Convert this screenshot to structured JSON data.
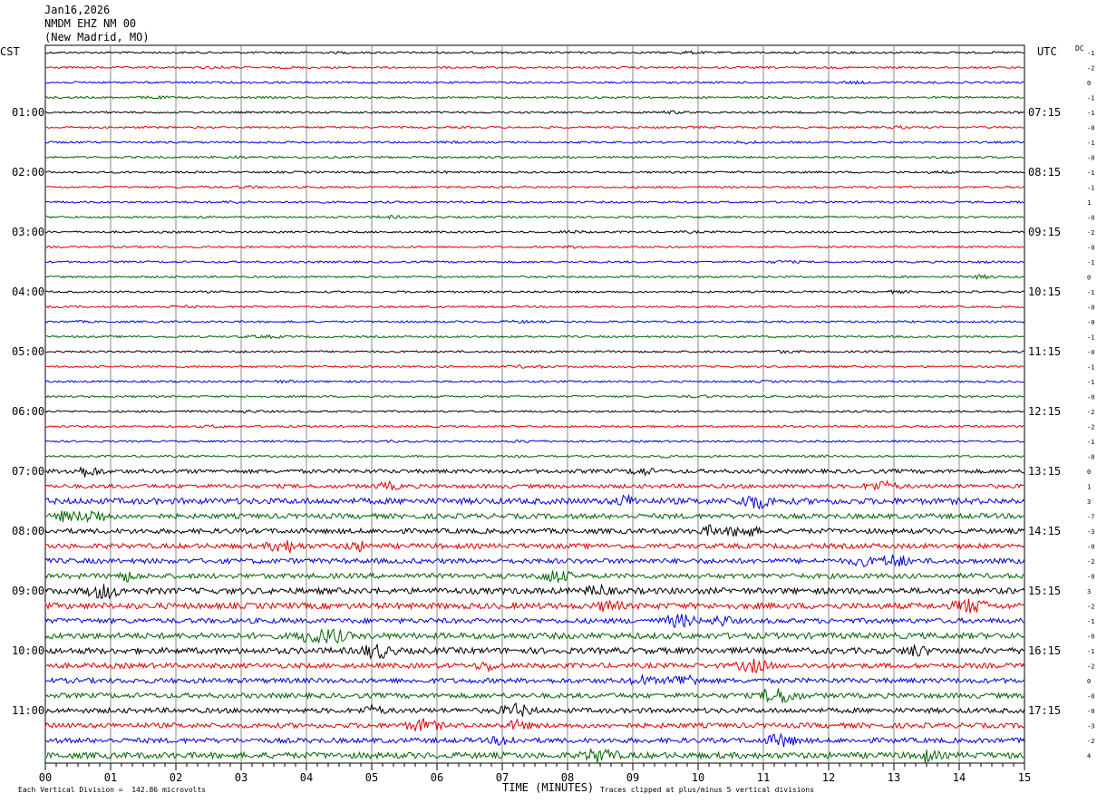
{
  "header": {
    "date": "Jan16,2026",
    "station": "NMDM EHZ NM 00",
    "location": "(New Madrid, MO)",
    "left_tz": "CST",
    "right_tz": "UTC",
    "dc_label": "DC"
  },
  "footer": {
    "scale_note": "Each Vertical Division =  142.86 microvolts",
    "xlabel": "TIME (MINUTES)",
    "clip_note": "Traces clipped at plus/minus 5 vertical divisions"
  },
  "chart_data": {
    "type": "line",
    "xlabel": "TIME (MINUTES)",
    "xlim": [
      0,
      15
    ],
    "x_ticks": [
      "00",
      "01",
      "02",
      "03",
      "04",
      "05",
      "06",
      "07",
      "08",
      "09",
      "10",
      "11",
      "12",
      "13",
      "14",
      "15"
    ],
    "trace_colors": [
      "#000000",
      "#e00000",
      "#0000e0",
      "#006600"
    ],
    "left_hour_labels": [
      "01:00",
      "02:00",
      "03:00",
      "04:00",
      "05:00",
      "06:00",
      "07:00",
      "08:00",
      "09:00",
      "10:00",
      "11:00"
    ],
    "right_hour_labels": [
      "07:15",
      "08:15",
      "09:15",
      "10:15",
      "11:15",
      "12:15",
      "13:15",
      "14:15",
      "15:15",
      "16:15",
      "17:15"
    ],
    "dc_offsets": [
      "-1",
      "-2",
      "0",
      "-1",
      "-1",
      "-0",
      "-1",
      "-0",
      "-1",
      "-1",
      "1",
      "-0",
      "-2",
      "-0",
      "-1",
      "0",
      "-1",
      "-0",
      "-0",
      "-1",
      "-0",
      "-1",
      "-1",
      "-0",
      "-2",
      "-2",
      "-1",
      "-0",
      "0",
      "1",
      "3",
      "-7",
      "-3",
      "-0",
      "-2",
      "-0",
      "3",
      "-2",
      "-1",
      "-0",
      "-1",
      "-2",
      "0",
      "-0",
      "-0",
      "-3",
      "-2",
      "4"
    ],
    "trace_amplitude": [
      1,
      1,
      1,
      1,
      1,
      1,
      1,
      1,
      1,
      1,
      1,
      1,
      1,
      1,
      1,
      1,
      1,
      1,
      1,
      1,
      1,
      1,
      1,
      1,
      1,
      1,
      1,
      1,
      2,
      2,
      3,
      2.5,
      2.5,
      2.5,
      2.5,
      2.5,
      3,
      3,
      2.5,
      3,
      3,
      2.5,
      2.5,
      2.5,
      2.5,
      2.5,
      2.5,
      3
    ]
  }
}
